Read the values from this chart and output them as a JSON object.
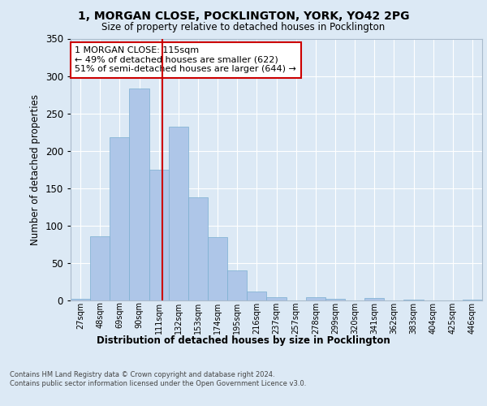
{
  "title1": "1, MORGAN CLOSE, POCKLINGTON, YORK, YO42 2PG",
  "title2": "Size of property relative to detached houses in Pocklington",
  "xlabel": "Distribution of detached houses by size in Pocklington",
  "ylabel": "Number of detached properties",
  "categories": [
    "27sqm",
    "48sqm",
    "69sqm",
    "90sqm",
    "111sqm",
    "132sqm",
    "153sqm",
    "174sqm",
    "195sqm",
    "216sqm",
    "237sqm",
    "257sqm",
    "278sqm",
    "299sqm",
    "320sqm",
    "341sqm",
    "362sqm",
    "383sqm",
    "404sqm",
    "425sqm",
    "446sqm"
  ],
  "values": [
    2,
    86,
    218,
    283,
    175,
    232,
    138,
    85,
    40,
    12,
    4,
    0,
    4,
    2,
    0,
    3,
    0,
    1,
    0,
    0,
    1
  ],
  "bar_color": "#aec6e8",
  "bar_edge_color": "#7aaed0",
  "vline_color": "#cc0000",
  "annotation_text": "1 MORGAN CLOSE: 115sqm\n← 49% of detached houses are smaller (622)\n51% of semi-detached houses are larger (644) →",
  "annotation_box_color": "#ffffff",
  "annotation_box_edge": "#cc0000",
  "bg_color": "#dce9f5",
  "plot_bg_color": "#dce9f5",
  "footer": "Contains HM Land Registry data © Crown copyright and database right 2024.\nContains public sector information licensed under the Open Government Licence v3.0.",
  "ylim": [
    0,
    350
  ],
  "yticks": [
    0,
    50,
    100,
    150,
    200,
    250,
    300,
    350
  ]
}
